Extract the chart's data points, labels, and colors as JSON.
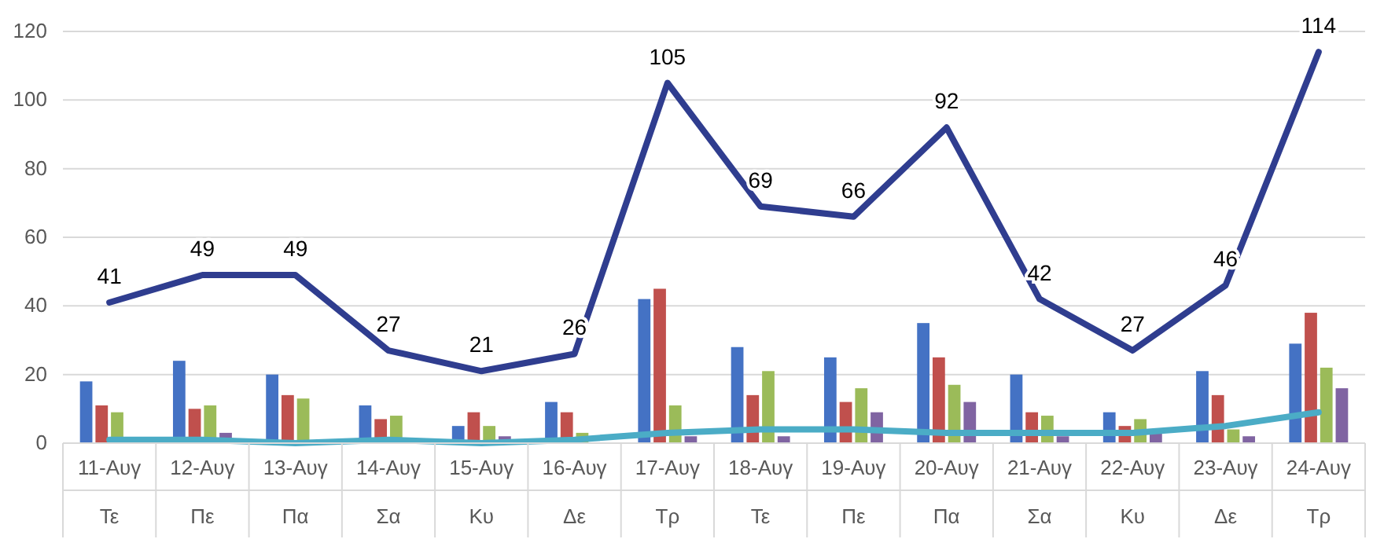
{
  "chart_data": {
    "type": "bar",
    "categories": [
      "11-Αυγ\nΤε",
      "12-Αυγ\nΠε",
      "13-Αυγ\nΠα",
      "14-Αυγ\nΣα",
      "15-Αυγ\nΚυ",
      "16-Αυγ\nΔε",
      "17-Αυγ\nΤρ",
      "18-Αυγ\nΤε",
      "19-Αυγ\nΠε",
      "20-Αυγ\nΠα",
      "21-Αυγ\nΣα",
      "22-Αυγ\nΚυ",
      "23-Αυγ\nΔε",
      "24-Αυγ\nΤρ"
    ],
    "series": [
      {
        "color": "#4472c4",
        "values": [
          18,
          24,
          20,
          11,
          5,
          12,
          42,
          28,
          25,
          35,
          20,
          9,
          21,
          29
        ]
      },
      {
        "color": "#c0504d",
        "values": [
          11,
          10,
          14,
          7,
          9,
          9,
          45,
          14,
          12,
          25,
          9,
          5,
          14,
          38
        ]
      },
      {
        "color": "#9bbb59",
        "values": [
          9,
          11,
          13,
          8,
          5,
          3,
          11,
          21,
          16,
          17,
          8,
          7,
          4,
          22
        ]
      },
      {
        "color": "#8064a2",
        "values": [
          0,
          3,
          0,
          0,
          2,
          0,
          2,
          2,
          9,
          12,
          2,
          3,
          2,
          16
        ]
      },
      {
        "type": "line",
        "color": "#2f3d8f",
        "values": [
          41,
          49,
          49,
          27,
          21,
          26,
          105,
          69,
          66,
          92,
          42,
          27,
          46,
          114
        ],
        "value_labels": [
          "41",
          "49",
          "49",
          "27",
          "21",
          "26",
          "105",
          "69",
          "66",
          "92",
          "42",
          "27",
          "46",
          "114"
        ]
      },
      {
        "type": "line",
        "color": "#4bacc6",
        "values": [
          1,
          1,
          0,
          1,
          0,
          1,
          3,
          4,
          4,
          3,
          3,
          3,
          5,
          9
        ]
      }
    ],
    "ylim": [
      0,
      120
    ],
    "yticks": [
      0,
      20,
      40,
      60,
      80,
      100,
      120
    ],
    "grid": "y"
  }
}
